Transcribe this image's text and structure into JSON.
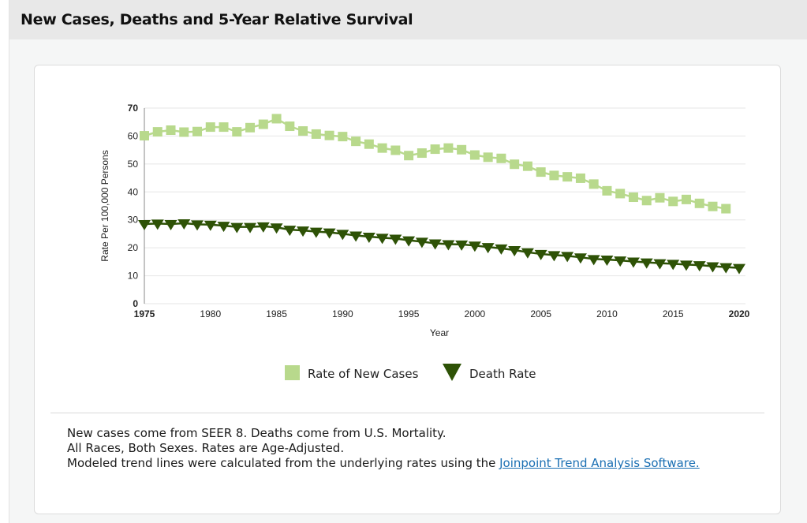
{
  "panel": {
    "title": "New Cases, Deaths and 5-Year Relative Survival"
  },
  "notes": {
    "line1": "New cases come from SEER 8. Deaths come from U.S. Mortality.",
    "line2": "All Races, Both Sexes. Rates are Age-Adjusted.",
    "line3_prefix": "Modeled trend lines were calculated from the underlying rates using the ",
    "link_label": "Joinpoint Trend Analysis Software."
  },
  "chart_data": {
    "type": "line",
    "title": "",
    "xlabel": "Year",
    "ylabel": "Rate Per 100,000 Persons",
    "xlim": [
      1975,
      2020
    ],
    "ylim": [
      0,
      70
    ],
    "grid": true,
    "x_ticks": [
      1975,
      1980,
      1985,
      1990,
      1995,
      2000,
      2005,
      2010,
      2015,
      2020
    ],
    "y_ticks": [
      0,
      10,
      20,
      30,
      40,
      50,
      60,
      70
    ],
    "legend_position": "bottom-center",
    "series": [
      {
        "name": "Rate of New Cases",
        "marker": "square",
        "color": "#b8d98c",
        "x": [
          1975,
          1976,
          1977,
          1978,
          1979,
          1980,
          1981,
          1982,
          1983,
          1984,
          1985,
          1986,
          1987,
          1988,
          1989,
          1990,
          1991,
          1992,
          1993,
          1994,
          1995,
          1996,
          1997,
          1998,
          1999,
          2000,
          2001,
          2002,
          2003,
          2004,
          2005,
          2006,
          2007,
          2008,
          2009,
          2010,
          2011,
          2012,
          2013,
          2014,
          2015,
          2016,
          2017,
          2018,
          2019
        ],
        "values": [
          60.1,
          61.5,
          62.1,
          61.4,
          61.6,
          63.2,
          63.2,
          61.5,
          63.0,
          64.2,
          66.2,
          63.5,
          61.8,
          60.7,
          60.2,
          59.8,
          58.1,
          57.1,
          55.7,
          54.9,
          53.0,
          53.9,
          55.3,
          55.7,
          55.1,
          53.2,
          52.4,
          52.0,
          49.9,
          49.2,
          47.1,
          45.9,
          45.4,
          44.9,
          42.8,
          40.4,
          39.4,
          38.1,
          36.9,
          37.9,
          36.6,
          37.3,
          35.9,
          34.8,
          34.0
        ]
      },
      {
        "name": "Death Rate",
        "marker": "triangle-down",
        "color": "#2e5206",
        "x": [
          1975,
          1976,
          1977,
          1978,
          1979,
          1980,
          1981,
          1982,
          1983,
          1984,
          1985,
          1986,
          1987,
          1988,
          1989,
          1990,
          1991,
          1992,
          1993,
          1994,
          1995,
          1996,
          1997,
          1998,
          1999,
          2000,
          2001,
          2002,
          2003,
          2004,
          2005,
          2006,
          2007,
          2008,
          2009,
          2010,
          2011,
          2012,
          2013,
          2014,
          2015,
          2016,
          2017,
          2018,
          2019,
          2020
        ],
        "values": [
          28.5,
          28.7,
          28.5,
          28.8,
          28.4,
          28.3,
          27.9,
          27.5,
          27.5,
          27.7,
          27.3,
          26.5,
          26.2,
          25.8,
          25.5,
          25.0,
          24.4,
          24.0,
          23.6,
          23.3,
          22.7,
          22.2,
          21.6,
          21.3,
          21.2,
          20.8,
          20.3,
          19.8,
          19.2,
          18.4,
          17.8,
          17.4,
          17.1,
          16.6,
          16.0,
          15.8,
          15.5,
          15.1,
          14.8,
          14.5,
          14.3,
          14.0,
          13.8,
          13.4,
          13.1,
          12.8
        ]
      }
    ]
  }
}
